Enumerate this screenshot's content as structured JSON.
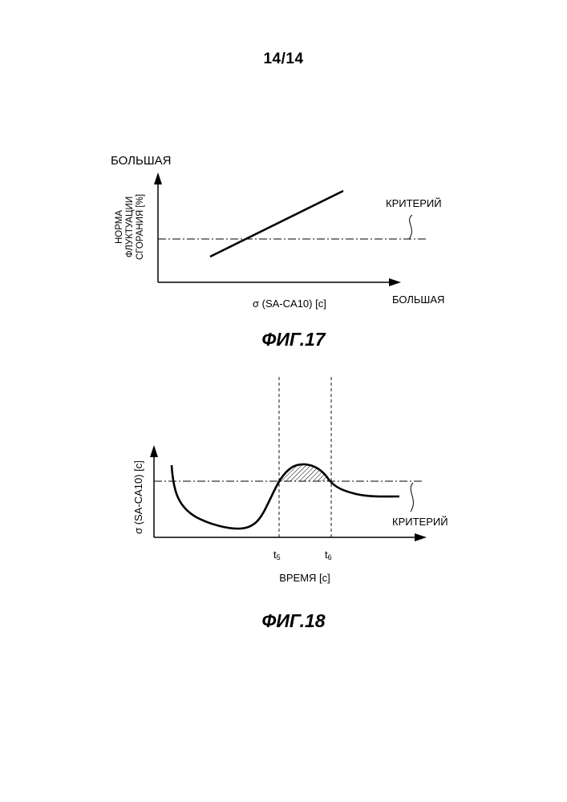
{
  "page": {
    "number": "14/14"
  },
  "figures": [
    {
      "caption": "ФИГ.17",
      "y_axis_high": "БОЛЬШАЯ",
      "y_axis_label_lines": [
        "НОРМА",
        "ФЛУКТУАЦИИ",
        "СГОРАНИЯ [%]"
      ],
      "x_axis_label": "σ (SA-CA10) [c]",
      "x_axis_high": "БОЛЬШАЯ",
      "criterion_label": "КРИТЕРИЙ",
      "chart_data": {
        "type": "line",
        "series": [
          {
            "values": [
              [
                0.22,
                0.13
              ],
              [
                0.78,
                0.86
              ]
            ]
          }
        ],
        "reference_line": {
          "label": "КРИТЕРИЙ",
          "y": 0.42,
          "style": "dash-dot"
        }
      }
    },
    {
      "caption": "ФИГ.18",
      "y_axis_label": "σ (SA-CA10) [c]",
      "x_axis_label": "ВРЕМЯ [c]",
      "tick_t5": "t5",
      "tick_t6": "t6",
      "criterion_label": "КРИТЕРИЙ",
      "chart_data": {
        "type": "line",
        "series": [
          {
            "values": [
              [
                0.06,
                0.88
              ],
              [
                0.08,
                0.55
              ],
              [
                0.12,
                0.28
              ],
              [
                0.2,
                0.15
              ],
              [
                0.3,
                0.08
              ],
              [
                0.36,
                0.1
              ],
              [
                0.42,
                0.3
              ],
              [
                0.5,
                0.63
              ],
              [
                0.55,
                0.77
              ],
              [
                0.6,
                0.79
              ],
              [
                0.66,
                0.68
              ],
              [
                0.72,
                0.6
              ],
              [
                0.8,
                0.51
              ],
              [
                0.9,
                0.48
              ],
              [
                0.98,
                0.47
              ]
            ]
          }
        ],
        "reference_line": {
          "label": "КРИТЕРИЙ",
          "y": 0.63,
          "style": "dash-dot"
        },
        "markers": [
          "t5",
          "t6"
        ],
        "shaded_region": "between t5 and t6, above criterion"
      }
    }
  ]
}
